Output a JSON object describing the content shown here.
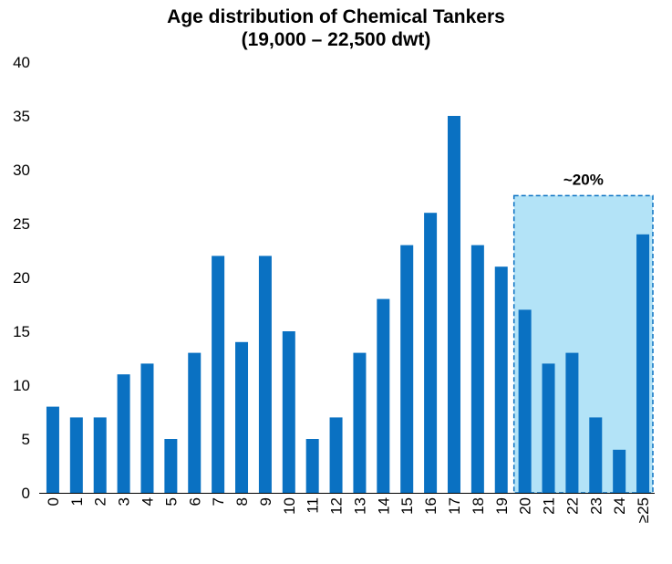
{
  "chart_data": {
    "type": "bar",
    "title": "Age distribution of Chemical Tankers",
    "subtitle": "(19,000 – 22,500 dwt)",
    "xlabel": "",
    "ylabel": "",
    "ylim": [
      0,
      40
    ],
    "yticks": [
      0,
      5,
      10,
      15,
      20,
      25,
      30,
      35,
      40
    ],
    "grid": false,
    "categories": [
      "0",
      "1",
      "2",
      "3",
      "4",
      "5",
      "6",
      "7",
      "8",
      "9",
      "10",
      "11",
      "12",
      "13",
      "14",
      "15",
      "16",
      "17",
      "18",
      "19",
      "20",
      "21",
      "22",
      "23",
      "24",
      "≥25"
    ],
    "values": [
      8,
      7,
      7,
      11,
      12,
      5,
      13,
      22,
      14,
      22,
      15,
      5,
      7,
      13,
      18,
      23,
      26,
      35,
      23,
      21,
      17,
      12,
      13,
      7,
      4,
      24
    ],
    "bar_color": "#0a71c2",
    "highlight": {
      "from_category": "20",
      "to_category": "≥25",
      "label": "~20%",
      "fill": "#b3e3f7",
      "border": "#0a71c2"
    }
  }
}
